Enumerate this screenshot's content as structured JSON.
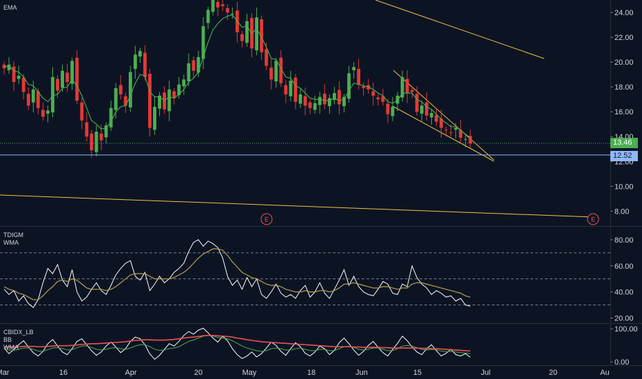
{
  "colors": {
    "background": "#0c1424",
    "up": "#26a69a",
    "down": "#ef5350",
    "candle_up": "#4caf50",
    "candle_down": "#e53935",
    "ema": "#4caf50",
    "trendline": "#f5c242",
    "last_price": "#4caf50",
    "horizontal_line": "#8fb8ff",
    "tdigm": "#ffffff",
    "wma": "#b7a24d",
    "grid": "#2a2e39"
  },
  "price_panel": {
    "indicator_label": "EMA",
    "last_price_badge": "13.46",
    "level_badge": "12.52",
    "earnings_marker": "E"
  },
  "tdigm_panel": {
    "labels": [
      "TDIGM",
      "WMA"
    ]
  },
  "cbidx_panel": {
    "labels": [
      "CBIDX_LB",
      "BB",
      "WMA"
    ]
  },
  "x_axis": {
    "labels": [
      "Mar",
      "16",
      "Apr",
      "20",
      "May",
      "18",
      "Jun",
      "15",
      "Jul",
      "20",
      "Au"
    ]
  },
  "chart_data": [
    {
      "type": "candlestick",
      "title": "",
      "indicator": "EMA",
      "y_ticks": [
        "8.00",
        "10.00",
        "12.00",
        "14.00",
        "16.00",
        "18.00",
        "20.00",
        "22.00",
        "24.00"
      ],
      "ylim": [
        6.8,
        25
      ],
      "last_price": 13.46,
      "horizontal_level": 12.52,
      "x_range": [
        "2020-03-01",
        "2020-08-02"
      ],
      "close": [
        19.5,
        19.8,
        18.4,
        18.9,
        17.6,
        16.5,
        17.8,
        16.3,
        15.6,
        16.1,
        18.8,
        17.7,
        19.3,
        18.4,
        20.1,
        16.9,
        15.3,
        14.0,
        12.9,
        14.4,
        13.7,
        14.9,
        16.3,
        17.9,
        17.4,
        16.5,
        19.2,
        20.6,
        20.9,
        18.8,
        14.7,
        16.4,
        17.3,
        16.2,
        17.8,
        17.1,
        18.2,
        18.6,
        19.9,
        19.3,
        20.4,
        22.9,
        24.2,
        25.0,
        24.4,
        24.5,
        24.0,
        23.9,
        22.4,
        21.7,
        23.3,
        21.1,
        23.6,
        20.8,
        19.7,
        18.6,
        20.1,
        18.3,
        17.4,
        18.5,
        16.8,
        17.4,
        16.5,
        16.3,
        16.7,
        17.2,
        16.6,
        17.1,
        17.5,
        16.6,
        17.2,
        19.1,
        19.6,
        18.2,
        17.9,
        17.8,
        17.3,
        17.0,
        16.8,
        15.8,
        16.4,
        17.3,
        18.8,
        17.5,
        17.6,
        16.0,
        16.5,
        15.7,
        15.9,
        15.2,
        14.7,
        14.5,
        14.3,
        14.7,
        13.9,
        13.8,
        13.46
      ],
      "series": [
        {
          "name": "EMA",
          "values": [
            19.6,
            19.7,
            19.3,
            19.2,
            18.8,
            18.2,
            18.1,
            17.6,
            17.1,
            16.8,
            17.3,
            17.4,
            17.9,
            18.0,
            18.6,
            18.1,
            17.3,
            16.3,
            15.3,
            15.0,
            14.6,
            14.7,
            15.2,
            16.0,
            16.4,
            16.5,
            17.3,
            18.3,
            19.0,
            18.9,
            17.6,
            17.2,
            17.2,
            16.9,
            17.2,
            17.1,
            17.4,
            17.8,
            18.4,
            18.7,
            19.2,
            20.4,
            21.6,
            22.6,
            23.1,
            23.5,
            23.7,
            23.8,
            23.3,
            22.8,
            22.9,
            22.3,
            22.7,
            22.0,
            21.2,
            20.3,
            20.2,
            19.5,
            18.8,
            18.7,
            18.1,
            17.9,
            17.5,
            17.1,
            17.0,
            17.0,
            16.9,
            16.9,
            17.1,
            16.9,
            17.0,
            17.7,
            18.3,
            18.2,
            18.1,
            18.0,
            17.8,
            17.5,
            17.3,
            16.8,
            16.7,
            16.9,
            17.5,
            17.5,
            17.5,
            17.0,
            16.8,
            16.4,
            16.2,
            15.8,
            15.4,
            15.1,
            14.8,
            14.8,
            14.5,
            14.2,
            13.9
          ]
        }
      ]
    },
    {
      "type": "line",
      "title": "",
      "y_ticks": [
        "20.00",
        "40.00",
        "60.00",
        "80.00"
      ],
      "ylim": [
        16,
        90
      ],
      "reference_levels": [
        30,
        50,
        70
      ],
      "series": [
        {
          "name": "TDIGM",
          "values": [
            42,
            38,
            41,
            33,
            37,
            31,
            28,
            34,
            47,
            58,
            54,
            61,
            49,
            44,
            57,
            40,
            33,
            36,
            42,
            47,
            41,
            38,
            45,
            53,
            58,
            62,
            64,
            52,
            49,
            55,
            41,
            46,
            52,
            47,
            50,
            55,
            58,
            62,
            71,
            78,
            80,
            75,
            79,
            77,
            74,
            66,
            52,
            45,
            49,
            42,
            51,
            44,
            50,
            38,
            35,
            40,
            46,
            39,
            36,
            38,
            35,
            41,
            45,
            36,
            40,
            47,
            39,
            35,
            42,
            49,
            57,
            45,
            52,
            44,
            40,
            38,
            37,
            42,
            48,
            46,
            39,
            38,
            46,
            44,
            60,
            51,
            46,
            43,
            38,
            41,
            39,
            36,
            37,
            33,
            35,
            30,
            29
          ]
        },
        {
          "name": "WMA",
          "values": [
            44,
            42,
            41,
            39,
            38,
            36,
            34,
            34,
            37,
            41,
            44,
            48,
            49,
            48,
            50,
            49,
            46,
            43,
            42,
            42,
            42,
            41,
            42,
            44,
            47,
            50,
            53,
            54,
            54,
            54,
            52,
            50,
            50,
            50,
            50,
            51,
            53,
            55,
            58,
            62,
            66,
            69,
            71,
            73,
            73,
            72,
            68,
            63,
            59,
            55,
            53,
            51,
            50,
            48,
            46,
            45,
            45,
            44,
            42,
            41,
            40,
            40,
            41,
            40,
            40,
            41,
            41,
            40,
            41,
            43,
            46,
            46,
            47,
            46,
            45,
            44,
            43,
            43,
            44,
            44,
            43,
            42,
            43,
            43,
            46,
            47,
            47,
            46,
            45,
            44,
            43,
            42,
            41,
            40,
            39,
            37,
            36
          ]
        }
      ]
    },
    {
      "type": "line",
      "title": "",
      "y_ticks": [
        "0.00",
        "100.00"
      ],
      "ylim": [
        -10,
        115
      ],
      "series": [
        {
          "name": "CBIDX_LB",
          "values": [
            42,
            25,
            38,
            52,
            64,
            45,
            28,
            18,
            32,
            55,
            68,
            48,
            30,
            22,
            40,
            62,
            70,
            52,
            34,
            20,
            30,
            48,
            60,
            45,
            28,
            40,
            62,
            75,
            70,
            52,
            24,
            8,
            20,
            38,
            55,
            48,
            62,
            80,
            92,
            84,
            96,
            102,
            88,
            72,
            60,
            78,
            64,
            40,
            22,
            10,
            18,
            30,
            15,
            25,
            42,
            60,
            50,
            32,
            20,
            40,
            58,
            46,
            26,
            18,
            30,
            48,
            40,
            22,
            35,
            58,
            72,
            55,
            36,
            20,
            32,
            50,
            62,
            44,
            28,
            18,
            38,
            56,
            78,
            64,
            45,
            30,
            22,
            40,
            52,
            34,
            18,
            26,
            38,
            22,
            18,
            25,
            14
          ]
        },
        {
          "name": "BB",
          "values": [
            40,
            36,
            35,
            38,
            42,
            42,
            38,
            33,
            32,
            37,
            42,
            43,
            40,
            36,
            37,
            43,
            48,
            48,
            44,
            38,
            36,
            38,
            42,
            43,
            40,
            38,
            42,
            48,
            52,
            52,
            46,
            38,
            35,
            36,
            40,
            42,
            46,
            54,
            62,
            66,
            72,
            78,
            80,
            78,
            74,
            72,
            70,
            64,
            56,
            48,
            42,
            38,
            34,
            32,
            34,
            40,
            42,
            40,
            36,
            36,
            40,
            42,
            38,
            34,
            34,
            38,
            38,
            34,
            34,
            40,
            46,
            47,
            44,
            38,
            36,
            38,
            42,
            42,
            38,
            34,
            34,
            40,
            48,
            50,
            48,
            43,
            38,
            36,
            38,
            37,
            33,
            31,
            32,
            30,
            28,
            27,
            25
          ]
        },
        {
          "name": "WMA",
          "values": [
            45,
            45,
            45,
            46,
            47,
            47,
            47,
            46,
            46,
            47,
            48,
            49,
            49,
            49,
            50,
            51,
            53,
            54,
            55,
            55,
            56,
            57,
            58,
            59,
            60,
            61,
            63,
            65,
            66,
            67,
            67,
            66,
            66,
            66,
            67,
            68,
            70,
            72,
            74,
            75,
            77,
            79,
            80,
            80,
            79,
            78,
            77,
            75,
            72,
            70,
            67,
            65,
            63,
            61,
            60,
            59,
            58,
            57,
            56,
            55,
            54,
            53,
            52,
            51,
            50,
            49,
            48,
            47,
            46,
            46,
            46,
            46,
            45,
            45,
            44,
            44,
            44,
            44,
            43,
            43,
            42,
            42,
            42,
            42,
            42,
            42,
            41,
            41,
            40,
            40,
            39,
            38,
            37,
            36,
            35,
            34,
            33
          ]
        }
      ]
    }
  ]
}
